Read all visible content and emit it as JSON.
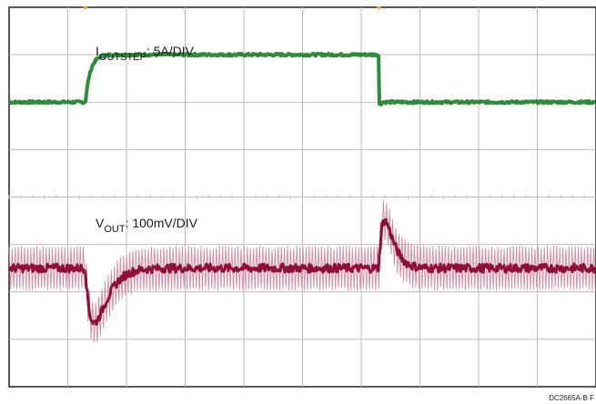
{
  "chart_data": {
    "type": "line",
    "grid": true,
    "x_divisions": 10,
    "y_divisions": 8,
    "trigger_markers": true,
    "colors": {
      "current": "#2e8b3c",
      "voltage_dark": "#8e0f3a",
      "voltage_light": "#d48aa3",
      "grid": "#bdbdbd",
      "frame": "#222222",
      "trigger_marker": "#e8a23a"
    },
    "series": [
      {
        "name_main": "I",
        "name_sub": "OUTSTEP",
        "scale": ": 5A/DIV",
        "baseline_div": 2.0,
        "step_div": 3.0,
        "step_on_div": 1.3,
        "step_off_div": 6.3
      },
      {
        "name_main": "V",
        "name_sub": "OUT",
        "scale": ": 100mV/DIV",
        "baseline_div": -1.5,
        "ripple_div": 0.95,
        "undershoot_div": -1.15,
        "overshoot_div": 1.0,
        "events_div": [
          1.3,
          6.3
        ]
      }
    ]
  },
  "figure_code": "DC2665A-B F"
}
